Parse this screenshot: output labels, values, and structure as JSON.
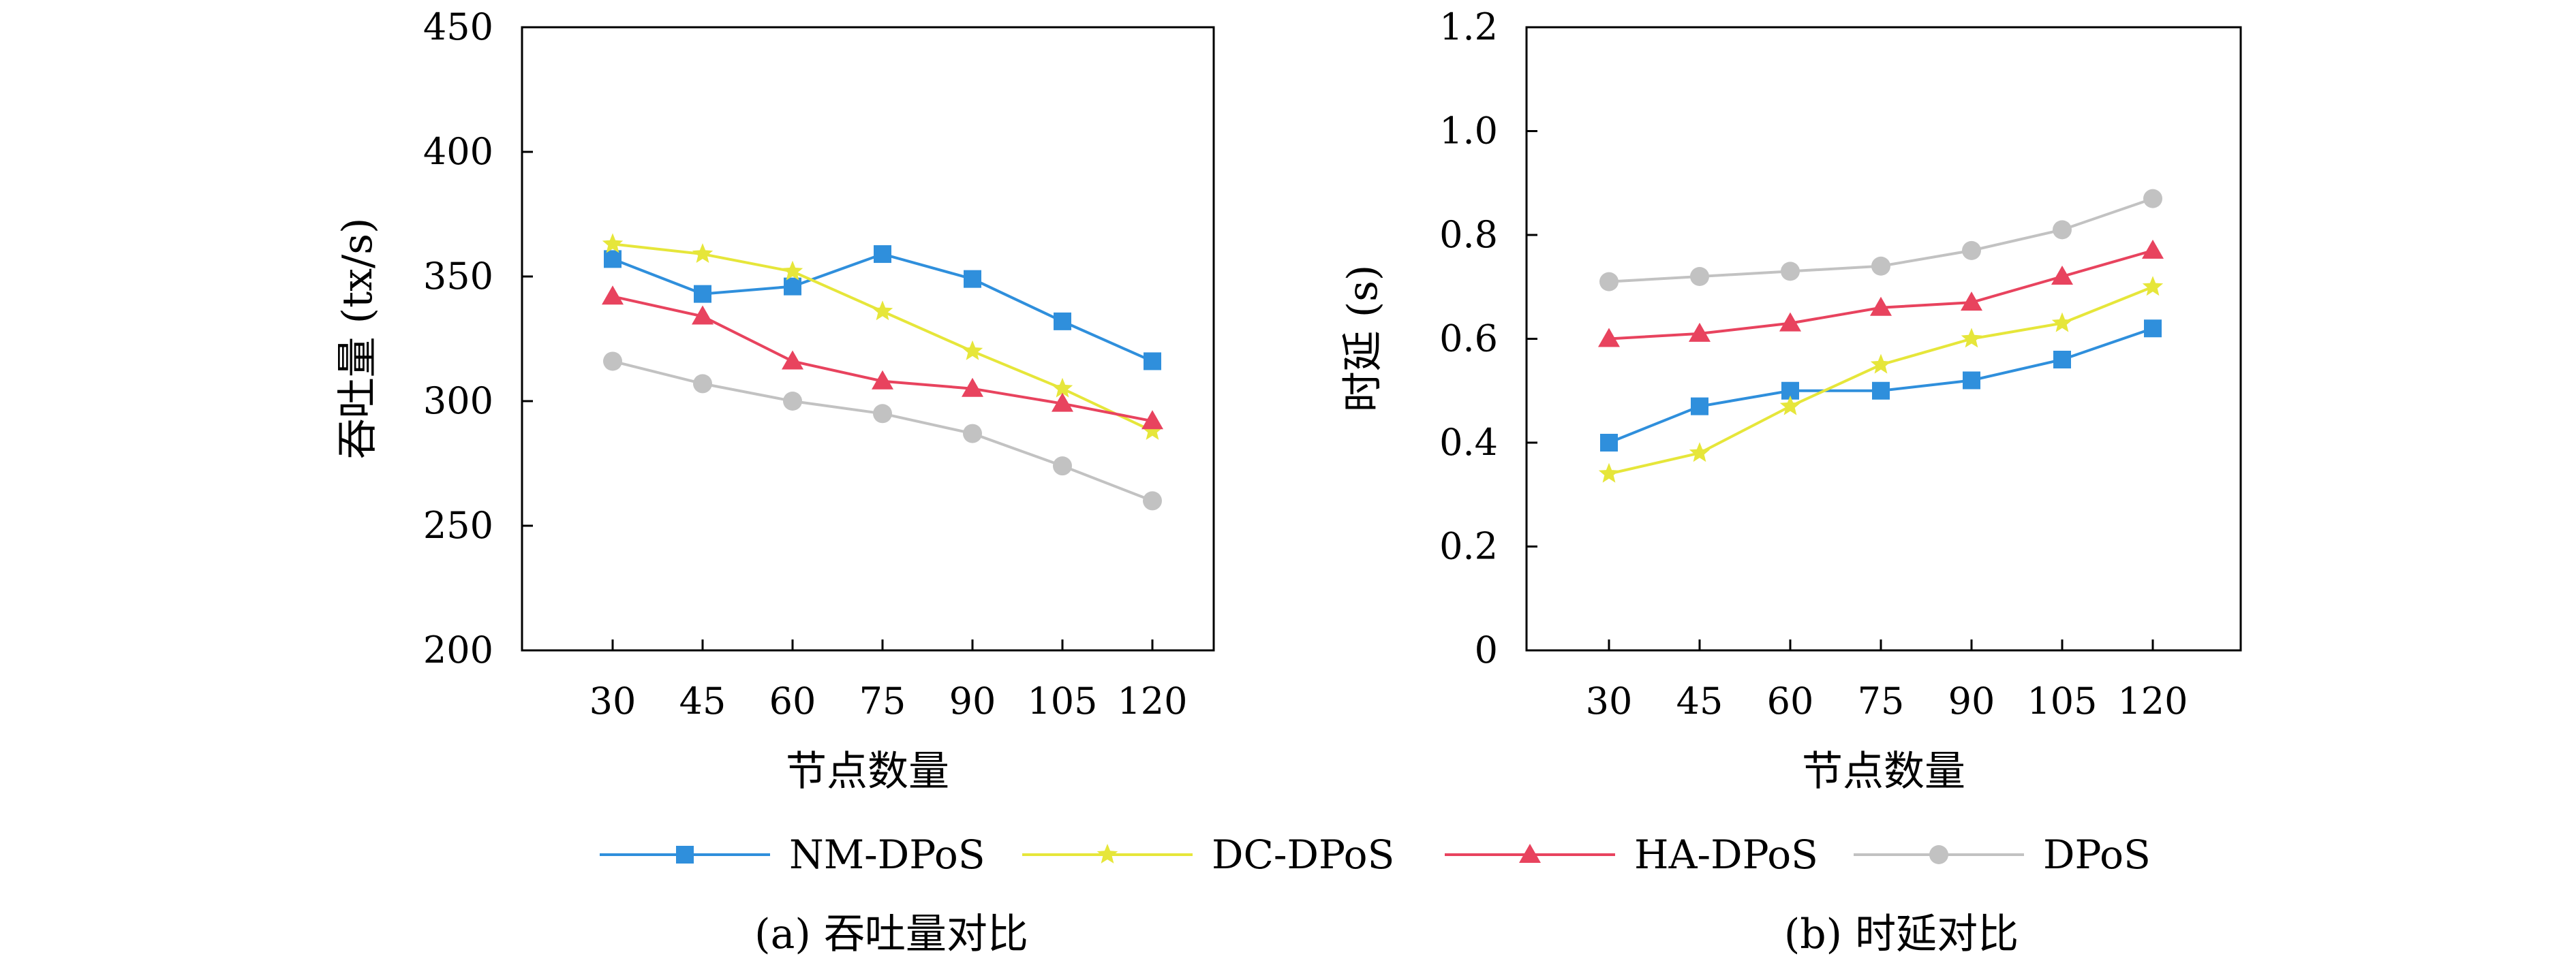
{
  "chart_data": [
    {
      "type": "line",
      "caption": "(a) 吞吐量对比",
      "xlabel": "节点数量",
      "ylabel": "吞吐量 (tx/s)",
      "x": [
        30,
        45,
        60,
        75,
        90,
        105,
        120
      ],
      "x_tick_labels": [
        "30",
        "45",
        "60",
        "75",
        "90",
        "105",
        "120"
      ],
      "ylim": [
        200,
        450
      ],
      "y_ticks": [
        200,
        250,
        300,
        350,
        400,
        450
      ],
      "y_tick_labels": [
        "200",
        "250",
        "300",
        "350",
        "400",
        "450"
      ],
      "grid": false,
      "series": [
        {
          "name": "NM-DPoS",
          "values": [
            357,
            343,
            346,
            359,
            349,
            332,
            316
          ]
        },
        {
          "name": "DC-DPoS",
          "values": [
            363,
            359,
            352,
            336,
            320,
            305,
            288
          ]
        },
        {
          "name": "HA-DPoS",
          "values": [
            342,
            334,
            316,
            308,
            305,
            299,
            292
          ]
        },
        {
          "name": "DPoS",
          "values": [
            316,
            307,
            300,
            295,
            287,
            274,
            260
          ]
        }
      ]
    },
    {
      "type": "line",
      "caption": "(b) 时延对比",
      "xlabel": "节点数量",
      "ylabel": "时延 (s)",
      "x": [
        30,
        45,
        60,
        75,
        90,
        105,
        120
      ],
      "x_tick_labels": [
        "30",
        "45",
        "60",
        "75",
        "90",
        "105",
        "120"
      ],
      "ylim": [
        0,
        1.2
      ],
      "y_ticks": [
        0,
        0.2,
        0.4,
        0.6,
        0.8,
        1.0,
        1.2
      ],
      "y_tick_labels": [
        "0",
        "0.2",
        "0.4",
        "0.6",
        "0.8",
        "1.0",
        "1.2"
      ],
      "grid": false,
      "series": [
        {
          "name": "NM-DPoS",
          "values": [
            0.4,
            0.47,
            0.5,
            0.5,
            0.52,
            0.56,
            0.62
          ]
        },
        {
          "name": "DC-DPoS",
          "values": [
            0.34,
            0.38,
            0.47,
            0.55,
            0.6,
            0.63,
            0.7
          ]
        },
        {
          "name": "HA-DPoS",
          "values": [
            0.6,
            0.61,
            0.63,
            0.66,
            0.67,
            0.72,
            0.77
          ]
        },
        {
          "name": "DPoS",
          "values": [
            0.71,
            0.72,
            0.73,
            0.74,
            0.77,
            0.81,
            0.87
          ]
        }
      ]
    }
  ],
  "legend": {
    "placement": "bottom-center",
    "items": [
      {
        "name": "NM-DPoS",
        "color": "#2f8fdc",
        "marker": "square"
      },
      {
        "name": "DC-DPoS",
        "color": "#e6e63a",
        "marker": "star"
      },
      {
        "name": "HA-DPoS",
        "color": "#e8435e",
        "marker": "triangle"
      },
      {
        "name": "DPoS",
        "color": "#c2c2c2",
        "marker": "circle"
      }
    ]
  }
}
